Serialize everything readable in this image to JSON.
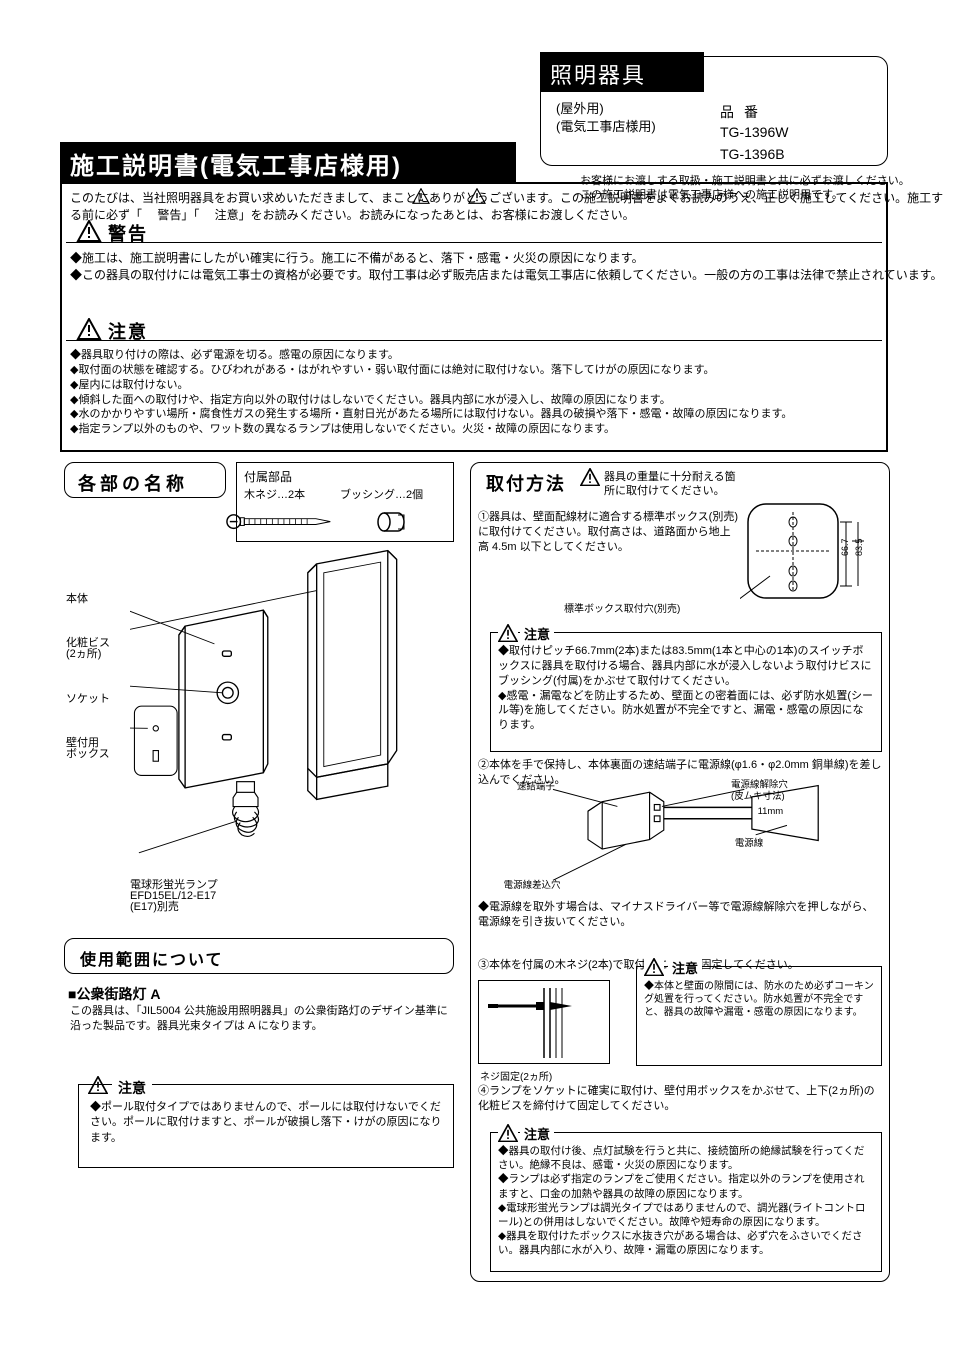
{
  "colors": {
    "black": "#000000",
    "white": "#ffffff"
  },
  "top": {
    "badge": "照明器具",
    "sub1": "(屋外用)",
    "sub2": "(電気工事店様用)",
    "row1": "品番",
    "row2": "TG-1396W",
    "row3": "TG-1396B",
    "note1": "お客様にお渡しする取扱・施工説明書と共に必ずお渡しください。",
    "note2": "この施工説明書は電気工事店様への施工説明用です。"
  },
  "title": "施工説明書(電気工事店様用)",
  "intro": "このたびは、当社照明器具をお買い求めいただきまして、まことにありがとうございます。この施工説明書をよくお読みのうえ、正しく施工してください。施工する前に必ず「　 警告」「　 注意」をお読みください。お読みになったあとは、お客様にお渡しください。",
  "warn": {
    "label": "警告",
    "body1": "◆施工は、施工説明書にしたがい確実に行う。施工に不備があると、落下・感電・火災の原因になります。",
    "body2": "◆この器具の取付けには電気工事士の資格が必要です。取付工事は必ず販売店または電気工事店に依頼してください。一般の方の工事は法律で禁止されています。"
  },
  "caution": {
    "label": "注意",
    "bullets": [
      "◆器具取り付けの際は、必ず電源を切る。感電の原因になります。",
      "◆取付面の状態を確認する。ひびわれがある・はがれやすい・弱い取付面には絶対に取付けない。落下してけがの原因になります。",
      "◆屋内には取付けない。",
      "◆傾斜した面への取付けや、指定方向以外の取付けはしないでください。器具内部に水が浸入し、故障の原因になります。",
      "◆水のかかりやすい場所・腐食性ガスの発生する場所・直射日光があたる場所には取付けない。器具の破損や落下・感電・故障の原因になります。",
      "◆指定ランプ以外のものや、ワット数の異なるランプは使用しないでください。火災・故障の原因になります。"
    ]
  },
  "parts": {
    "label": "各部の名称"
  },
  "kit": {
    "title": "付属部品",
    "item1": "木ネジ…2本",
    "item2": "ブッシング…2個"
  },
  "drawing_labels": {
    "l1": "本体",
    "l2a": "化粧ビス",
    "l2b": "(2ヵ所)",
    "l3": "ソケット",
    "l4a": "壁付用",
    "l4b": "ボックス",
    "lL1": "電球形蛍光ランプ",
    "lL2": "EFD15EL/12-E17",
    "lL3": "(E17)別売"
  },
  "use": {
    "label": "使用範囲について",
    "pub": "■公衆街路灯 A",
    "body": "この器具は、「JIL5004 公共施設用照明器具」の公衆街路灯のデザイン基準に沿った製品です。器具光束タイプは A になります。"
  },
  "left_caution": {
    "label": "注意",
    "body": "◆ポール取付タイプではありませんので、ポールには取付けないでください。ポールに取付けますと、ポールが破損し落下・けがの原因になります。"
  },
  "method": {
    "label": "取付方法",
    "warn": "器具の重量に十分耐える箇所に取付けてください。",
    "step1": "①器具は、壁面配線材に適合する標準ボックス(別売)に取付けてください。取付高さは、道路面から地上高 4.5m 以下としてください。",
    "fig1_note": "標準ボックス取付穴(別売)",
    "rc1_label": "注意",
    "rc1_body": "◆取付けピッチ66.7mm(2本)または83.5mm(1本と中心の1本)のスイッチボックスに器具を取付ける場合、器具内部に水が浸入しないよう取付けビスにブッシング(付属)をかぶせて取付けてください。\n◆感電・漏電などを防止するため、壁面との密着面には、必ず防水処置(シール等)を施してください。防水処置が不完全ですと、漏電・感電の原因になります。",
    "step2": "②本体を手で保持し、本体裏面の速結端子に電源線(φ1.6・φ2.0mm 銅単線)を差し込んでください。",
    "step2b": "◆電源線を取外す場合は、マイナスドライバー等で電源線解除穴を押しながら、電源線を引き抜いてください。",
    "step3": "③本体を付属の木ネジ(2本)で取付面に確実に固定してください。",
    "screw_cap": "ネジ固定(2ヵ所)",
    "rc2_label": "注意",
    "rc2_body": "◆本体と壁面の隙間には、防水のため必ずコーキング処置を行ってください。防水処置が不完全ですと、器具の故障や漏電・感電の原因になります。",
    "step4": "④ランプをソケットに確実に取付け、壁付用ボックスをかぶせて、上下(2ヵ所)の化粧ビスを締付けて固定してください。",
    "rc3_label": "注意",
    "rc3_body": "◆器具の取付け後、点灯試験を行うと共に、接続箇所の絶縁試験を行ってください。絶縁不良は、感電・火災の原因になります。\n◆ランプは必ず指定のランプをご使用ください。指定以外のランプを使用されますと、口金の加熱や器具の故障の原因になります。\n◆電球形蛍光ランプは調光タイプではありませんので、調光器(ライトコントロール)との併用はしないでください。故障や短寿命の原因になります。\n◆器具を取付けたボックスに水抜き穴がある場合は、必ず穴をふさいでください。器具内部に水が入り、故障・漏電の原因になります。"
  }
}
